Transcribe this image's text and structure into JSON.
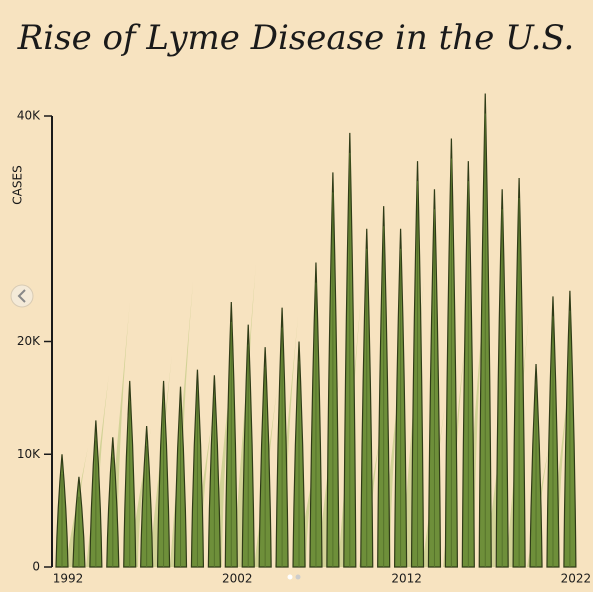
{
  "chart_data": {
    "type": "bar",
    "title": "Rise of Lyme Disease in the U.S.",
    "y_label": "CASES",
    "categories": [
      "1992",
      null,
      null,
      null,
      null,
      null,
      null,
      null,
      null,
      null,
      "2002",
      null,
      null,
      null,
      null,
      null,
      null,
      null,
      null,
      null,
      "2012",
      null,
      null,
      null,
      null,
      null,
      null,
      null,
      null,
      null,
      "2022"
    ],
    "values": [
      10000,
      8000,
      13000,
      11500,
      16500,
      12500,
      16500,
      16000,
      17500,
      17000,
      23500,
      21500,
      19500,
      23000,
      20000,
      27000,
      35000,
      38500,
      30000,
      32000,
      30000,
      36000,
      33500,
      38000,
      36000,
      42000,
      33500,
      34500,
      18000,
      24000,
      24500
    ],
    "color": "#6e8f3a",
    "ylim": [
      0,
      40000
    ],
    "yticks": [
      {
        "value": 0,
        "label": "0"
      },
      {
        "value": 10000,
        "label": "10K"
      },
      {
        "value": 20000,
        "label": "20K"
      },
      {
        "value": 40000,
        "label": "40K"
      }
    ]
  }
}
